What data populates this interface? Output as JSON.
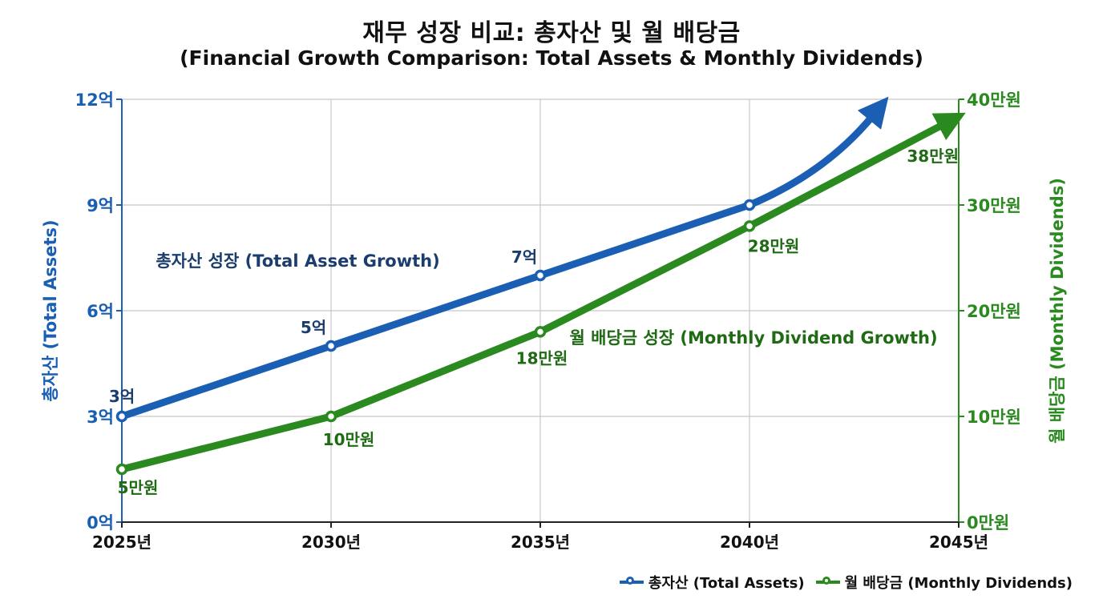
{
  "chart_data": {
    "type": "line",
    "title": "재무 성장 비교: 총자산 및 월 배당금",
    "subtitle": "(Financial Growth Comparison: Total Assets & Monthly Dividends)",
    "x": [
      "2025년",
      "2030년",
      "2035년",
      "2040년",
      "2045년"
    ],
    "x_values": [
      2025,
      2030,
      2035,
      2040,
      2045
    ],
    "y_left": {
      "label": "총자산 (Total Assets)",
      "ticks": [
        "0억",
        "3억",
        "6억",
        "9억",
        "12억"
      ],
      "ylim": [
        0,
        12
      ],
      "color": "#1a5fb4"
    },
    "y_right": {
      "label": "월 배당금 (Monthly Dividends)",
      "ticks": [
        "0만원",
        "10만원",
        "20만원",
        "30만원",
        "40만원"
      ],
      "ylim": [
        0,
        40
      ],
      "color": "#2a8a1f"
    },
    "series": [
      {
        "name": "총자산 (Total Assets)",
        "axis": "left",
        "color": "#1a5fb4",
        "x": [
          2025,
          2030,
          2035,
          2040
        ],
        "values": [
          3,
          5,
          7,
          9
        ],
        "labels": [
          "3억",
          "5억",
          "7억",
          ""
        ],
        "trend_end": {
          "x": 2043.3,
          "y": 12
        },
        "annotation": "총자산 성장 (Total Asset Growth)"
      },
      {
        "name": "월 배당금 (Monthly Dividends)",
        "axis": "right",
        "color": "#2a8a1f",
        "x": [
          2025,
          2030,
          2035,
          2040
        ],
        "values": [
          5,
          10,
          18,
          28
        ],
        "labels": [
          "5만원",
          "10만원",
          "18만원",
          "28만원"
        ],
        "trend_end": {
          "x": 2045,
          "y": 38.5
        },
        "trend_label": "38만원",
        "annotation": "월 배당금 성장 (Monthly Dividend Growth)"
      }
    ],
    "grid": true,
    "legend": "bottom-right"
  }
}
